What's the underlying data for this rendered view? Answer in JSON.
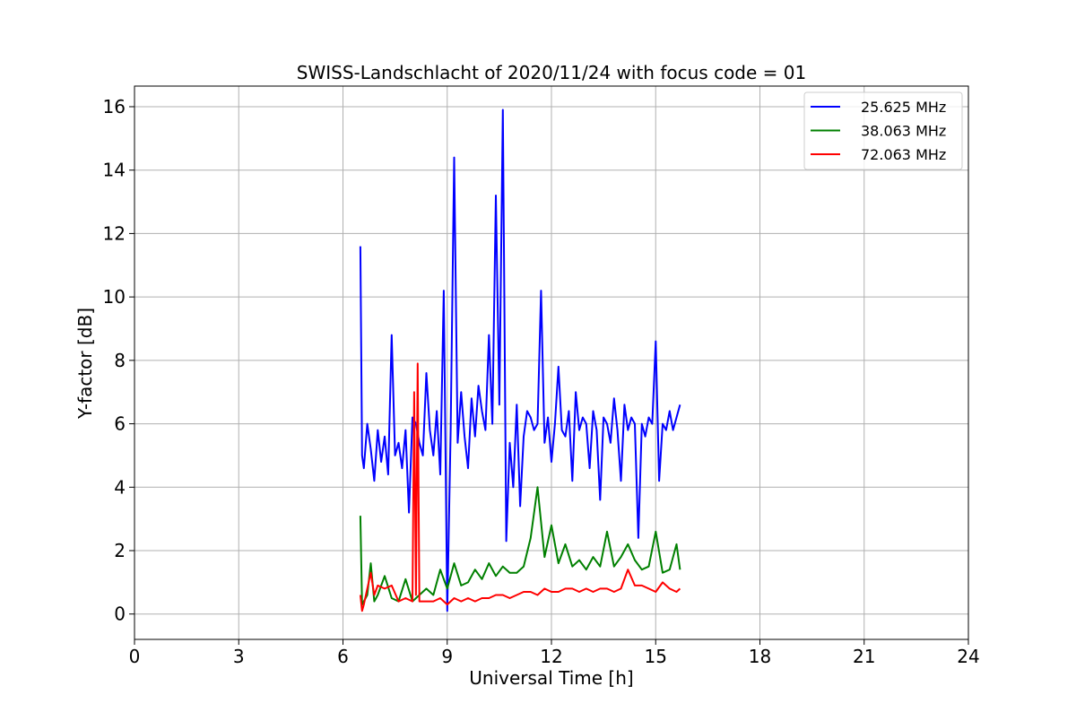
{
  "chart_data": {
    "type": "line",
    "title": "SWISS-Landschlacht of 2020/11/24 with focus code = 01",
    "xlabel": "Universal Time [h]",
    "ylabel": "Y-factor [dB]",
    "xlim": [
      0,
      24
    ],
    "ylim": [
      -0.8,
      16.65
    ],
    "xticks": [
      0,
      3,
      6,
      9,
      12,
      15,
      18,
      21,
      24
    ],
    "yticks": [
      0,
      2,
      4,
      6,
      8,
      10,
      12,
      14,
      16
    ],
    "grid": true,
    "legend_position": "upper right",
    "series": [
      {
        "name": "25.625 MHz",
        "color": "#0000ff",
        "x": [
          6.5,
          6.55,
          6.6,
          6.7,
          6.8,
          6.9,
          7.0,
          7.1,
          7.2,
          7.3,
          7.4,
          7.5,
          7.6,
          7.7,
          7.8,
          7.9,
          8.0,
          8.1,
          8.2,
          8.3,
          8.4,
          8.5,
          8.6,
          8.7,
          8.8,
          8.9,
          9.0,
          9.1,
          9.2,
          9.3,
          9.4,
          9.5,
          9.6,
          9.7,
          9.8,
          9.9,
          10.0,
          10.1,
          10.2,
          10.3,
          10.4,
          10.5,
          10.6,
          10.7,
          10.8,
          10.9,
          11.0,
          11.1,
          11.2,
          11.3,
          11.4,
          11.5,
          11.6,
          11.7,
          11.8,
          11.9,
          12.0,
          12.1,
          12.2,
          12.3,
          12.4,
          12.5,
          12.6,
          12.7,
          12.8,
          12.9,
          13.0,
          13.1,
          13.2,
          13.3,
          13.4,
          13.5,
          13.6,
          13.7,
          13.8,
          13.9,
          14.0,
          14.1,
          14.2,
          14.3,
          14.4,
          14.5,
          14.6,
          14.7,
          14.8,
          14.9,
          15.0,
          15.1,
          15.2,
          15.3,
          15.4,
          15.5,
          15.6,
          15.7
        ],
        "values": [
          11.6,
          5.0,
          4.6,
          6.0,
          5.2,
          4.2,
          5.8,
          4.8,
          5.6,
          4.4,
          8.8,
          5.0,
          5.4,
          4.6,
          5.8,
          3.2,
          6.2,
          6.0,
          5.4,
          5.0,
          7.6,
          5.8,
          5.0,
          6.4,
          4.4,
          10.2,
          0.1,
          5.8,
          14.4,
          5.4,
          7.0,
          5.6,
          4.6,
          6.8,
          5.6,
          7.2,
          6.4,
          5.8,
          8.8,
          6.0,
          13.2,
          6.6,
          15.9,
          2.3,
          5.4,
          4.0,
          6.6,
          3.4,
          5.6,
          6.4,
          6.2,
          5.8,
          6.0,
          10.2,
          5.4,
          6.2,
          4.8,
          6.0,
          7.8,
          5.8,
          5.6,
          6.4,
          4.2,
          7.0,
          5.8,
          6.2,
          6.0,
          4.6,
          6.4,
          5.8,
          3.6,
          6.2,
          6.0,
          5.4,
          6.8,
          5.8,
          4.2,
          6.6,
          5.8,
          6.2,
          6.0,
          2.4,
          6.0,
          5.6,
          6.2,
          6.0,
          8.6,
          4.2,
          6.0,
          5.8,
          6.4,
          5.8,
          6.2,
          6.6
        ]
      },
      {
        "name": "38.063 MHz",
        "color": "#008000",
        "x": [
          6.5,
          6.55,
          6.6,
          6.7,
          6.8,
          6.9,
          7.0,
          7.2,
          7.4,
          7.6,
          7.8,
          8.0,
          8.2,
          8.4,
          8.6,
          8.8,
          9.0,
          9.2,
          9.4,
          9.6,
          9.8,
          10.0,
          10.2,
          10.4,
          10.6,
          10.8,
          11.0,
          11.2,
          11.4,
          11.6,
          11.8,
          12.0,
          12.2,
          12.4,
          12.6,
          12.8,
          13.0,
          13.2,
          13.4,
          13.6,
          13.8,
          14.0,
          14.2,
          14.4,
          14.6,
          14.8,
          15.0,
          15.2,
          15.4,
          15.6,
          15.7
        ],
        "values": [
          3.1,
          0.3,
          0.4,
          0.6,
          1.6,
          0.4,
          0.6,
          1.2,
          0.5,
          0.4,
          1.1,
          0.4,
          0.6,
          0.8,
          0.6,
          1.4,
          0.8,
          1.6,
          0.9,
          1.0,
          1.4,
          1.1,
          1.6,
          1.2,
          1.5,
          1.3,
          1.3,
          1.5,
          2.4,
          4.0,
          1.8,
          2.8,
          1.6,
          2.2,
          1.5,
          1.7,
          1.4,
          1.8,
          1.5,
          2.6,
          1.5,
          1.8,
          2.2,
          1.7,
          1.4,
          1.5,
          2.6,
          1.3,
          1.4,
          2.2,
          1.4
        ]
      },
      {
        "name": "72.063 MHz",
        "color": "#ff0000",
        "x": [
          6.5,
          6.55,
          6.6,
          6.7,
          6.8,
          6.9,
          7.0,
          7.2,
          7.4,
          7.6,
          7.8,
          8.0,
          8.05,
          8.1,
          8.15,
          8.2,
          8.4,
          8.6,
          8.8,
          9.0,
          9.2,
          9.4,
          9.6,
          9.8,
          10.0,
          10.2,
          10.4,
          10.6,
          10.8,
          11.0,
          11.2,
          11.4,
          11.6,
          11.8,
          12.0,
          12.2,
          12.4,
          12.6,
          12.8,
          13.0,
          13.2,
          13.4,
          13.6,
          13.8,
          14.0,
          14.2,
          14.4,
          14.6,
          14.8,
          15.0,
          15.2,
          15.4,
          15.6,
          15.7
        ],
        "values": [
          0.6,
          0.1,
          0.3,
          0.8,
          1.3,
          0.6,
          0.9,
          0.8,
          0.9,
          0.4,
          0.5,
          0.4,
          7.0,
          0.6,
          7.9,
          0.4,
          0.4,
          0.4,
          0.5,
          0.3,
          0.5,
          0.4,
          0.5,
          0.4,
          0.5,
          0.5,
          0.6,
          0.6,
          0.5,
          0.6,
          0.7,
          0.7,
          0.6,
          0.8,
          0.7,
          0.7,
          0.8,
          0.8,
          0.7,
          0.8,
          0.7,
          0.8,
          0.8,
          0.7,
          0.8,
          1.4,
          0.9,
          0.9,
          0.8,
          0.7,
          1.0,
          0.8,
          0.7,
          0.8
        ]
      }
    ]
  }
}
